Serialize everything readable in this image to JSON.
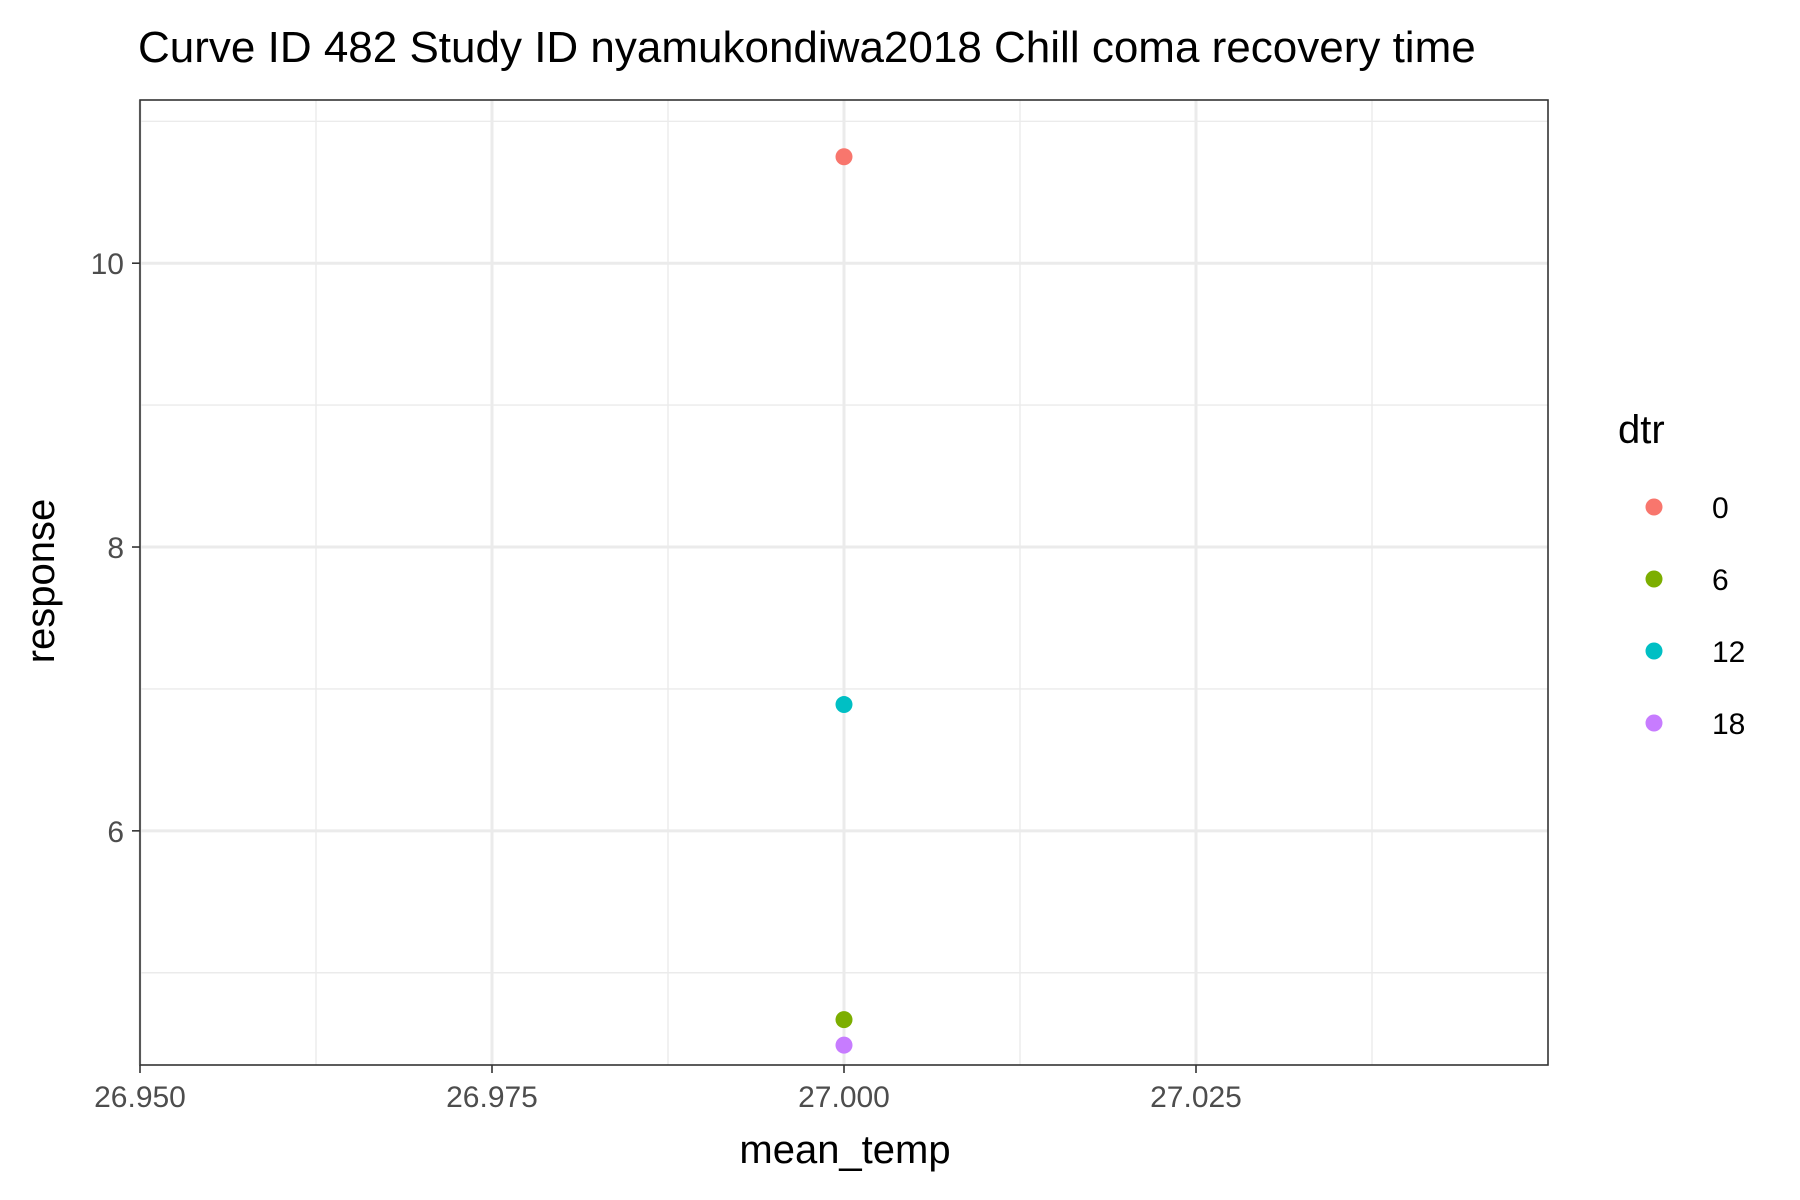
{
  "chart_data": {
    "type": "scatter",
    "title": "Curve ID 482 Study ID nyamukondiwa2018 Chill coma recovery time",
    "xlabel": "mean_temp",
    "ylabel": "response",
    "xlim": [
      26.95,
      27.05
    ],
    "ylim": [
      4.35,
      11.15
    ],
    "x_ticks": [
      26.95,
      26.975,
      27.0,
      27.025
    ],
    "x_tick_labels": [
      "26.950",
      "26.975",
      "27.000",
      "27.025"
    ],
    "y_ticks": [
      6,
      8,
      10
    ],
    "y_tick_labels": [
      "6",
      "8",
      "10"
    ],
    "grid": true,
    "legend": {
      "title": "dtr",
      "placement": "right"
    },
    "series": [
      {
        "name": "0",
        "color": "#F8766D",
        "x": [
          27.0
        ],
        "y": [
          10.75
        ]
      },
      {
        "name": "6",
        "color": "#7CAE00",
        "x": [
          27.0
        ],
        "y": [
          4.67
        ]
      },
      {
        "name": "12",
        "color": "#00BFC4",
        "x": [
          27.0
        ],
        "y": [
          6.89
        ]
      },
      {
        "name": "18",
        "color": "#C77CFF",
        "x": [
          27.0
        ],
        "y": [
          4.49
        ]
      }
    ]
  }
}
